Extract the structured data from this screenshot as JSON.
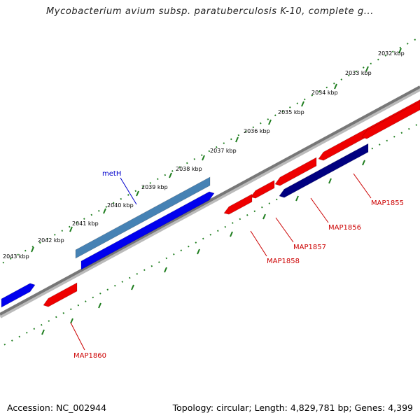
{
  "title": "Mycobacterium avium subsp. paratuberculosis K-10, complete g...",
  "footer": {
    "accession": "Accession: NC_002944",
    "stats": "Topology: circular; Length: 4,829,781 bp; Genes: 4,399"
  },
  "colors": {
    "backbone": "#777777",
    "tick": "#1e7d1e",
    "gene_forward": "#0000ee",
    "gene_forward_highlight": "#4682b4",
    "gene_reverse": "#ee0000",
    "gene_reverse_highlight": "#000080",
    "label_forward": "#0000cc",
    "label_reverse": "#cc0000"
  },
  "scale": {
    "unit": "kbp",
    "kbp_labels": [
      "2032 kbp",
      "2033 kbp",
      "2034 kbp",
      "2035 kbp",
      "2036 kbp",
      "2037 kbp",
      "2038 kbp",
      "2039 kbp",
      "2040 kbp",
      "2041 kbp",
      "2042 kbp",
      "2043 kbp"
    ]
  },
  "genes_forward": [
    {
      "name": "metH",
      "highlight": true,
      "labeled": true
    },
    {
      "name": "",
      "highlight": false,
      "labeled": false
    },
    {
      "name": "",
      "highlight": false,
      "labeled": false
    }
  ],
  "genes_reverse": [
    {
      "name": "MAP1855",
      "highlight": false,
      "labeled": true
    },
    {
      "name": "MAP1856",
      "highlight": true,
      "labeled": true
    },
    {
      "name": "MAP1857",
      "highlight": false,
      "labeled": true
    },
    {
      "name": "MAP1858",
      "highlight": false,
      "labeled": true
    },
    {
      "name": "MAP1860",
      "highlight": false,
      "labeled": true
    },
    {
      "name": "",
      "highlight": false,
      "labeled": false
    },
    {
      "name": "",
      "highlight": false,
      "labeled": false
    }
  ]
}
